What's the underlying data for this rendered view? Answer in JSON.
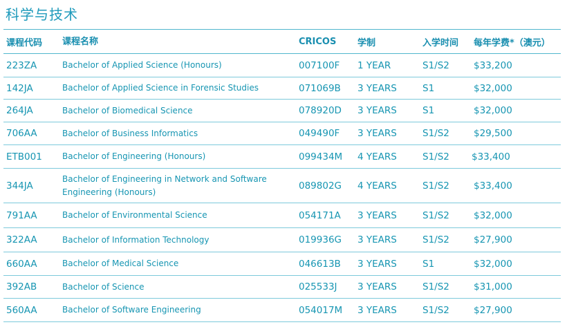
{
  "section_title": "科学与技术",
  "headers": {
    "code": "课程代码",
    "name": "课程名称",
    "cricos": "CRICOS",
    "duration": "学制",
    "intake": "入学时间",
    "fee": "每年学费*（澳元）"
  },
  "rows": [
    {
      "code": "223ZA",
      "name": "Bachelor of Applied Science (Honours)",
      "cricos": "007100F",
      "duration": "1 YEAR",
      "intake": "S1/S2",
      "fee": "$33,200"
    },
    {
      "code": "142JA",
      "name": "Bachelor of Applied Science in Forensic Studies",
      "cricos": "071069B",
      "duration": "3 YEARS",
      "intake": "S1",
      "fee": "$32,000"
    },
    {
      "code": "264JA",
      "name": "Bachelor of Biomedical Science",
      "cricos": "078920D",
      "duration": "3 YEARS",
      "intake": "S1",
      "fee": "$32,000"
    },
    {
      "code": "706AA",
      "name": "Bachelor of Business Informatics",
      "cricos": "049490F",
      "duration": "3 YEARS",
      "intake": "S1/S2",
      "fee": "$29,500"
    },
    {
      "code": "ETB001",
      "name": "Bachelor of Engineering (Honours)",
      "cricos": "099434M",
      "duration": "4 YEARS",
      "intake": "S1/S2",
      "fee": "$33,400"
    },
    {
      "code": "344JA",
      "name": "Bachelor of Engineering in Network and Software Engineering (Honours)",
      "cricos": "089802G",
      "duration": "4 YEARS",
      "intake": "S1/S2",
      "fee": "$33,400"
    },
    {
      "code": "791AA",
      "name": "Bachelor of Environmental Science",
      "cricos": "054171A",
      "duration": "3 YEARS",
      "intake": "S1/S2",
      "fee": "$32,000"
    },
    {
      "code": "322AA",
      "name": "Bachelor of Information Technology",
      "cricos": "019936G",
      "duration": "3 YEARS",
      "intake": "S1/S2",
      "fee": "$27,900"
    },
    {
      "code": "660AA",
      "name": "Bachelor of Medical Science",
      "cricos": "046613B",
      "duration": "3 YEARS",
      "intake": "S1",
      "fee": "$32,000"
    },
    {
      "code": "392AB",
      "name": "Bachelor of Science",
      "cricos": "025533J",
      "duration": "3 YEARS",
      "intake": "S1/S2",
      "fee": "$31,000"
    },
    {
      "code": "560AA",
      "name": "Bachelor of Software Engineering",
      "cricos": "054017M",
      "duration": "3 YEARS",
      "intake": "S1/S2",
      "fee": "$27,900"
    }
  ]
}
